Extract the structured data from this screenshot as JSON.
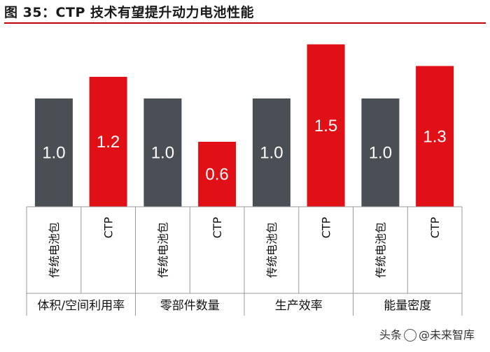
{
  "title": "图 35：CTP 技术有望提升动力电池性能",
  "watermark": {
    "prefix": "头条",
    "brand": "@未来智库"
  },
  "colors": {
    "traditional": "#4a4f55",
    "ctp": "#e10f16",
    "accent": "#c00000",
    "label": "#ffffff"
  },
  "chart_data": {
    "type": "bar",
    "title": "CTP 技术有望提升动力电池性能",
    "groups": [
      "体积/空间利用率",
      "零部件数量",
      "生产效率",
      "能量密度"
    ],
    "series": [
      {
        "name": "传统电池包",
        "values": [
          1.0,
          1.0,
          1.0,
          1.0
        ],
        "labels": [
          "1.0",
          "1.0",
          "1.0",
          "1.0"
        ]
      },
      {
        "name": "CTP",
        "values": [
          1.2,
          0.6,
          1.5,
          1.3
        ],
        "labels": [
          "1.2",
          "0.6",
          "1.5",
          "1.3"
        ]
      }
    ],
    "ylim": [
      0,
      1.6
    ],
    "grid": false,
    "legend": "none"
  }
}
